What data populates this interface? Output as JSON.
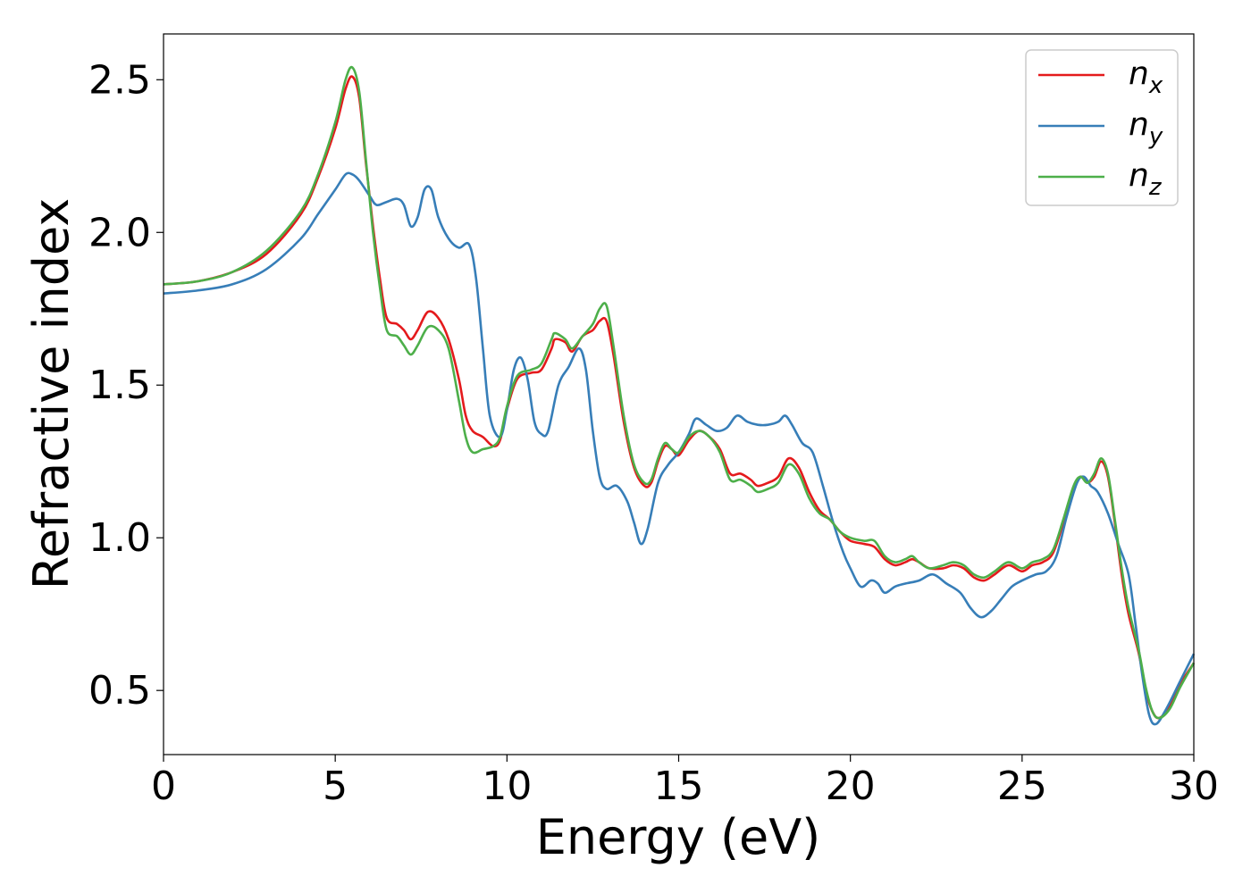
{
  "chart_data": {
    "type": "line",
    "title": "",
    "xlabel": "Energy (eV)",
    "ylabel": "Refractive index",
    "xlim": [
      0,
      30
    ],
    "ylim": [
      0.29,
      2.65
    ],
    "xticks": [
      0,
      5,
      10,
      15,
      20,
      25,
      30
    ],
    "yticks": [
      0.5,
      1.0,
      1.5,
      2.0,
      2.5
    ],
    "xtick_labels": [
      "0",
      "5",
      "10",
      "15",
      "20",
      "25",
      "30"
    ],
    "ytick_labels": [
      "0.5",
      "1.0",
      "1.5",
      "2.0",
      "2.5"
    ],
    "grid": false,
    "legend_position": "top-right",
    "series": [
      {
        "name": "n_x",
        "legend_base": "n",
        "legend_sub": "x",
        "color": "#e41a1c",
        "points": [
          [
            0,
            1.83
          ],
          [
            1,
            1.84
          ],
          [
            2,
            1.87
          ],
          [
            3,
            1.93
          ],
          [
            4,
            2.06
          ],
          [
            4.5,
            2.18
          ],
          [
            5,
            2.34
          ],
          [
            5.3,
            2.47
          ],
          [
            5.5,
            2.51
          ],
          [
            5.7,
            2.44
          ],
          [
            5.9,
            2.22
          ],
          [
            6.1,
            2.02
          ],
          [
            6.3,
            1.85
          ],
          [
            6.5,
            1.72
          ],
          [
            6.8,
            1.7
          ],
          [
            7.0,
            1.68
          ],
          [
            7.2,
            1.65
          ],
          [
            7.4,
            1.68
          ],
          [
            7.7,
            1.74
          ],
          [
            8.0,
            1.72
          ],
          [
            8.3,
            1.65
          ],
          [
            8.6,
            1.52
          ],
          [
            8.8,
            1.4
          ],
          [
            9.0,
            1.35
          ],
          [
            9.3,
            1.33
          ],
          [
            9.6,
            1.3
          ],
          [
            9.8,
            1.32
          ],
          [
            10.0,
            1.42
          ],
          [
            10.3,
            1.52
          ],
          [
            10.7,
            1.54
          ],
          [
            11.0,
            1.55
          ],
          [
            11.3,
            1.62
          ],
          [
            11.4,
            1.65
          ],
          [
            11.7,
            1.64
          ],
          [
            11.9,
            1.61
          ],
          [
            12.2,
            1.66
          ],
          [
            12.5,
            1.68
          ],
          [
            12.7,
            1.71
          ],
          [
            12.9,
            1.71
          ],
          [
            13.1,
            1.6
          ],
          [
            13.4,
            1.38
          ],
          [
            13.7,
            1.23
          ],
          [
            14.0,
            1.17
          ],
          [
            14.2,
            1.18
          ],
          [
            14.4,
            1.25
          ],
          [
            14.6,
            1.3
          ],
          [
            14.8,
            1.29
          ],
          [
            15.0,
            1.27
          ],
          [
            15.3,
            1.32
          ],
          [
            15.6,
            1.35
          ],
          [
            15.9,
            1.33
          ],
          [
            16.2,
            1.29
          ],
          [
            16.5,
            1.21
          ],
          [
            16.8,
            1.21
          ],
          [
            17.1,
            1.19
          ],
          [
            17.3,
            1.17
          ],
          [
            17.6,
            1.18
          ],
          [
            17.9,
            1.2
          ],
          [
            18.2,
            1.26
          ],
          [
            18.5,
            1.23
          ],
          [
            18.8,
            1.15
          ],
          [
            19.1,
            1.09
          ],
          [
            19.4,
            1.06
          ],
          [
            19.7,
            1.02
          ],
          [
            20.0,
            0.99
          ],
          [
            20.4,
            0.98
          ],
          [
            20.7,
            0.97
          ],
          [
            21.0,
            0.93
          ],
          [
            21.3,
            0.91
          ],
          [
            21.6,
            0.92
          ],
          [
            21.8,
            0.93
          ],
          [
            22.0,
            0.92
          ],
          [
            22.3,
            0.9
          ],
          [
            22.7,
            0.9
          ],
          [
            23.0,
            0.91
          ],
          [
            23.3,
            0.9
          ],
          [
            23.6,
            0.87
          ],
          [
            23.9,
            0.86
          ],
          [
            24.2,
            0.88
          ],
          [
            24.6,
            0.91
          ],
          [
            25.0,
            0.89
          ],
          [
            25.3,
            0.91
          ],
          [
            25.6,
            0.92
          ],
          [
            25.9,
            0.95
          ],
          [
            26.2,
            1.05
          ],
          [
            26.5,
            1.16
          ],
          [
            26.7,
            1.2
          ],
          [
            26.9,
            1.18
          ],
          [
            27.1,
            1.2
          ],
          [
            27.3,
            1.25
          ],
          [
            27.5,
            1.2
          ],
          [
            27.7,
            1.05
          ],
          [
            27.9,
            0.88
          ],
          [
            28.1,
            0.75
          ],
          [
            28.4,
            0.62
          ],
          [
            28.6,
            0.5
          ],
          [
            28.8,
            0.43
          ],
          [
            29.0,
            0.41
          ],
          [
            29.3,
            0.45
          ],
          [
            29.6,
            0.52
          ],
          [
            30.0,
            0.59
          ]
        ]
      },
      {
        "name": "n_y",
        "legend_base": "n",
        "legend_sub": "y",
        "color": "#377eb8",
        "points": [
          [
            0,
            1.8
          ],
          [
            1,
            1.81
          ],
          [
            2,
            1.83
          ],
          [
            3,
            1.88
          ],
          [
            4,
            1.98
          ],
          [
            4.5,
            2.06
          ],
          [
            5,
            2.14
          ],
          [
            5.3,
            2.19
          ],
          [
            5.5,
            2.19
          ],
          [
            5.7,
            2.17
          ],
          [
            6.0,
            2.12
          ],
          [
            6.2,
            2.09
          ],
          [
            6.5,
            2.1
          ],
          [
            6.8,
            2.11
          ],
          [
            7.0,
            2.09
          ],
          [
            7.2,
            2.02
          ],
          [
            7.4,
            2.05
          ],
          [
            7.6,
            2.14
          ],
          [
            7.8,
            2.14
          ],
          [
            8.0,
            2.05
          ],
          [
            8.3,
            1.98
          ],
          [
            8.6,
            1.95
          ],
          [
            8.9,
            1.96
          ],
          [
            9.1,
            1.85
          ],
          [
            9.3,
            1.62
          ],
          [
            9.5,
            1.4
          ],
          [
            9.8,
            1.33
          ],
          [
            10.0,
            1.42
          ],
          [
            10.2,
            1.55
          ],
          [
            10.4,
            1.59
          ],
          [
            10.6,
            1.52
          ],
          [
            10.8,
            1.38
          ],
          [
            11.0,
            1.34
          ],
          [
            11.2,
            1.35
          ],
          [
            11.5,
            1.5
          ],
          [
            11.8,
            1.56
          ],
          [
            12.1,
            1.62
          ],
          [
            12.3,
            1.55
          ],
          [
            12.5,
            1.35
          ],
          [
            12.7,
            1.2
          ],
          [
            12.9,
            1.16
          ],
          [
            13.2,
            1.17
          ],
          [
            13.5,
            1.12
          ],
          [
            13.7,
            1.05
          ],
          [
            13.9,
            0.98
          ],
          [
            14.1,
            1.03
          ],
          [
            14.4,
            1.18
          ],
          [
            14.7,
            1.24
          ],
          [
            15.0,
            1.28
          ],
          [
            15.3,
            1.34
          ],
          [
            15.5,
            1.39
          ],
          [
            15.8,
            1.37
          ],
          [
            16.1,
            1.35
          ],
          [
            16.4,
            1.36
          ],
          [
            16.7,
            1.4
          ],
          [
            17.0,
            1.38
          ],
          [
            17.3,
            1.37
          ],
          [
            17.6,
            1.37
          ],
          [
            17.9,
            1.38
          ],
          [
            18.1,
            1.4
          ],
          [
            18.3,
            1.37
          ],
          [
            18.6,
            1.31
          ],
          [
            18.9,
            1.28
          ],
          [
            19.2,
            1.17
          ],
          [
            19.5,
            1.05
          ],
          [
            19.8,
            0.95
          ],
          [
            20.0,
            0.9
          ],
          [
            20.3,
            0.84
          ],
          [
            20.6,
            0.86
          ],
          [
            20.8,
            0.85
          ],
          [
            21.0,
            0.82
          ],
          [
            21.3,
            0.84
          ],
          [
            21.6,
            0.85
          ],
          [
            22.0,
            0.86
          ],
          [
            22.4,
            0.88
          ],
          [
            22.8,
            0.85
          ],
          [
            23.2,
            0.82
          ],
          [
            23.5,
            0.77
          ],
          [
            23.8,
            0.74
          ],
          [
            24.1,
            0.76
          ],
          [
            24.4,
            0.8
          ],
          [
            24.7,
            0.84
          ],
          [
            25.0,
            0.86
          ],
          [
            25.4,
            0.88
          ],
          [
            25.7,
            0.89
          ],
          [
            26.0,
            0.94
          ],
          [
            26.3,
            1.07
          ],
          [
            26.6,
            1.18
          ],
          [
            26.8,
            1.2
          ],
          [
            27.0,
            1.17
          ],
          [
            27.2,
            1.15
          ],
          [
            27.5,
            1.08
          ],
          [
            27.8,
            0.98
          ],
          [
            28.1,
            0.88
          ],
          [
            28.3,
            0.72
          ],
          [
            28.5,
            0.55
          ],
          [
            28.7,
            0.42
          ],
          [
            28.9,
            0.39
          ],
          [
            29.2,
            0.44
          ],
          [
            29.6,
            0.53
          ],
          [
            30.0,
            0.62
          ]
        ]
      },
      {
        "name": "n_z",
        "legend_base": "n",
        "legend_sub": "z",
        "color": "#4daf4a",
        "points": [
          [
            0,
            1.83
          ],
          [
            1,
            1.84
          ],
          [
            2,
            1.87
          ],
          [
            3,
            1.94
          ],
          [
            4,
            2.07
          ],
          [
            4.5,
            2.19
          ],
          [
            5,
            2.36
          ],
          [
            5.3,
            2.5
          ],
          [
            5.5,
            2.54
          ],
          [
            5.7,
            2.46
          ],
          [
            5.9,
            2.23
          ],
          [
            6.1,
            2.0
          ],
          [
            6.3,
            1.82
          ],
          [
            6.5,
            1.68
          ],
          [
            6.8,
            1.66
          ],
          [
            7.0,
            1.63
          ],
          [
            7.2,
            1.6
          ],
          [
            7.4,
            1.63
          ],
          [
            7.7,
            1.69
          ],
          [
            8.0,
            1.68
          ],
          [
            8.3,
            1.62
          ],
          [
            8.6,
            1.45
          ],
          [
            8.8,
            1.33
          ],
          [
            9.0,
            1.28
          ],
          [
            9.3,
            1.29
          ],
          [
            9.6,
            1.3
          ],
          [
            9.8,
            1.33
          ],
          [
            10.0,
            1.43
          ],
          [
            10.3,
            1.53
          ],
          [
            10.7,
            1.55
          ],
          [
            11.0,
            1.57
          ],
          [
            11.3,
            1.65
          ],
          [
            11.4,
            1.67
          ],
          [
            11.7,
            1.65
          ],
          [
            11.9,
            1.62
          ],
          [
            12.2,
            1.66
          ],
          [
            12.5,
            1.7
          ],
          [
            12.7,
            1.75
          ],
          [
            12.9,
            1.76
          ],
          [
            13.1,
            1.63
          ],
          [
            13.4,
            1.4
          ],
          [
            13.7,
            1.24
          ],
          [
            14.0,
            1.18
          ],
          [
            14.2,
            1.19
          ],
          [
            14.4,
            1.26
          ],
          [
            14.6,
            1.31
          ],
          [
            14.8,
            1.29
          ],
          [
            15.0,
            1.28
          ],
          [
            15.3,
            1.33
          ],
          [
            15.6,
            1.35
          ],
          [
            15.9,
            1.33
          ],
          [
            16.2,
            1.28
          ],
          [
            16.5,
            1.19
          ],
          [
            16.8,
            1.19
          ],
          [
            17.1,
            1.17
          ],
          [
            17.3,
            1.15
          ],
          [
            17.6,
            1.16
          ],
          [
            17.9,
            1.18
          ],
          [
            18.2,
            1.24
          ],
          [
            18.5,
            1.21
          ],
          [
            18.8,
            1.13
          ],
          [
            19.1,
            1.08
          ],
          [
            19.4,
            1.06
          ],
          [
            19.7,
            1.02
          ],
          [
            20.0,
            1.0
          ],
          [
            20.4,
            0.99
          ],
          [
            20.7,
            0.99
          ],
          [
            21.0,
            0.94
          ],
          [
            21.3,
            0.92
          ],
          [
            21.6,
            0.93
          ],
          [
            21.8,
            0.94
          ],
          [
            22.0,
            0.92
          ],
          [
            22.3,
            0.9
          ],
          [
            22.7,
            0.91
          ],
          [
            23.0,
            0.92
          ],
          [
            23.3,
            0.91
          ],
          [
            23.6,
            0.88
          ],
          [
            23.9,
            0.87
          ],
          [
            24.2,
            0.89
          ],
          [
            24.6,
            0.92
          ],
          [
            25.0,
            0.9
          ],
          [
            25.3,
            0.92
          ],
          [
            25.6,
            0.93
          ],
          [
            25.9,
            0.96
          ],
          [
            26.2,
            1.06
          ],
          [
            26.5,
            1.17
          ],
          [
            26.7,
            1.2
          ],
          [
            26.9,
            1.18
          ],
          [
            27.1,
            1.21
          ],
          [
            27.3,
            1.26
          ],
          [
            27.5,
            1.21
          ],
          [
            27.7,
            1.06
          ],
          [
            27.9,
            0.9
          ],
          [
            28.1,
            0.77
          ],
          [
            28.4,
            0.63
          ],
          [
            28.6,
            0.51
          ],
          [
            28.8,
            0.43
          ],
          [
            29.0,
            0.41
          ],
          [
            29.3,
            0.44
          ],
          [
            29.6,
            0.51
          ],
          [
            30.0,
            0.59
          ]
        ]
      }
    ]
  }
}
